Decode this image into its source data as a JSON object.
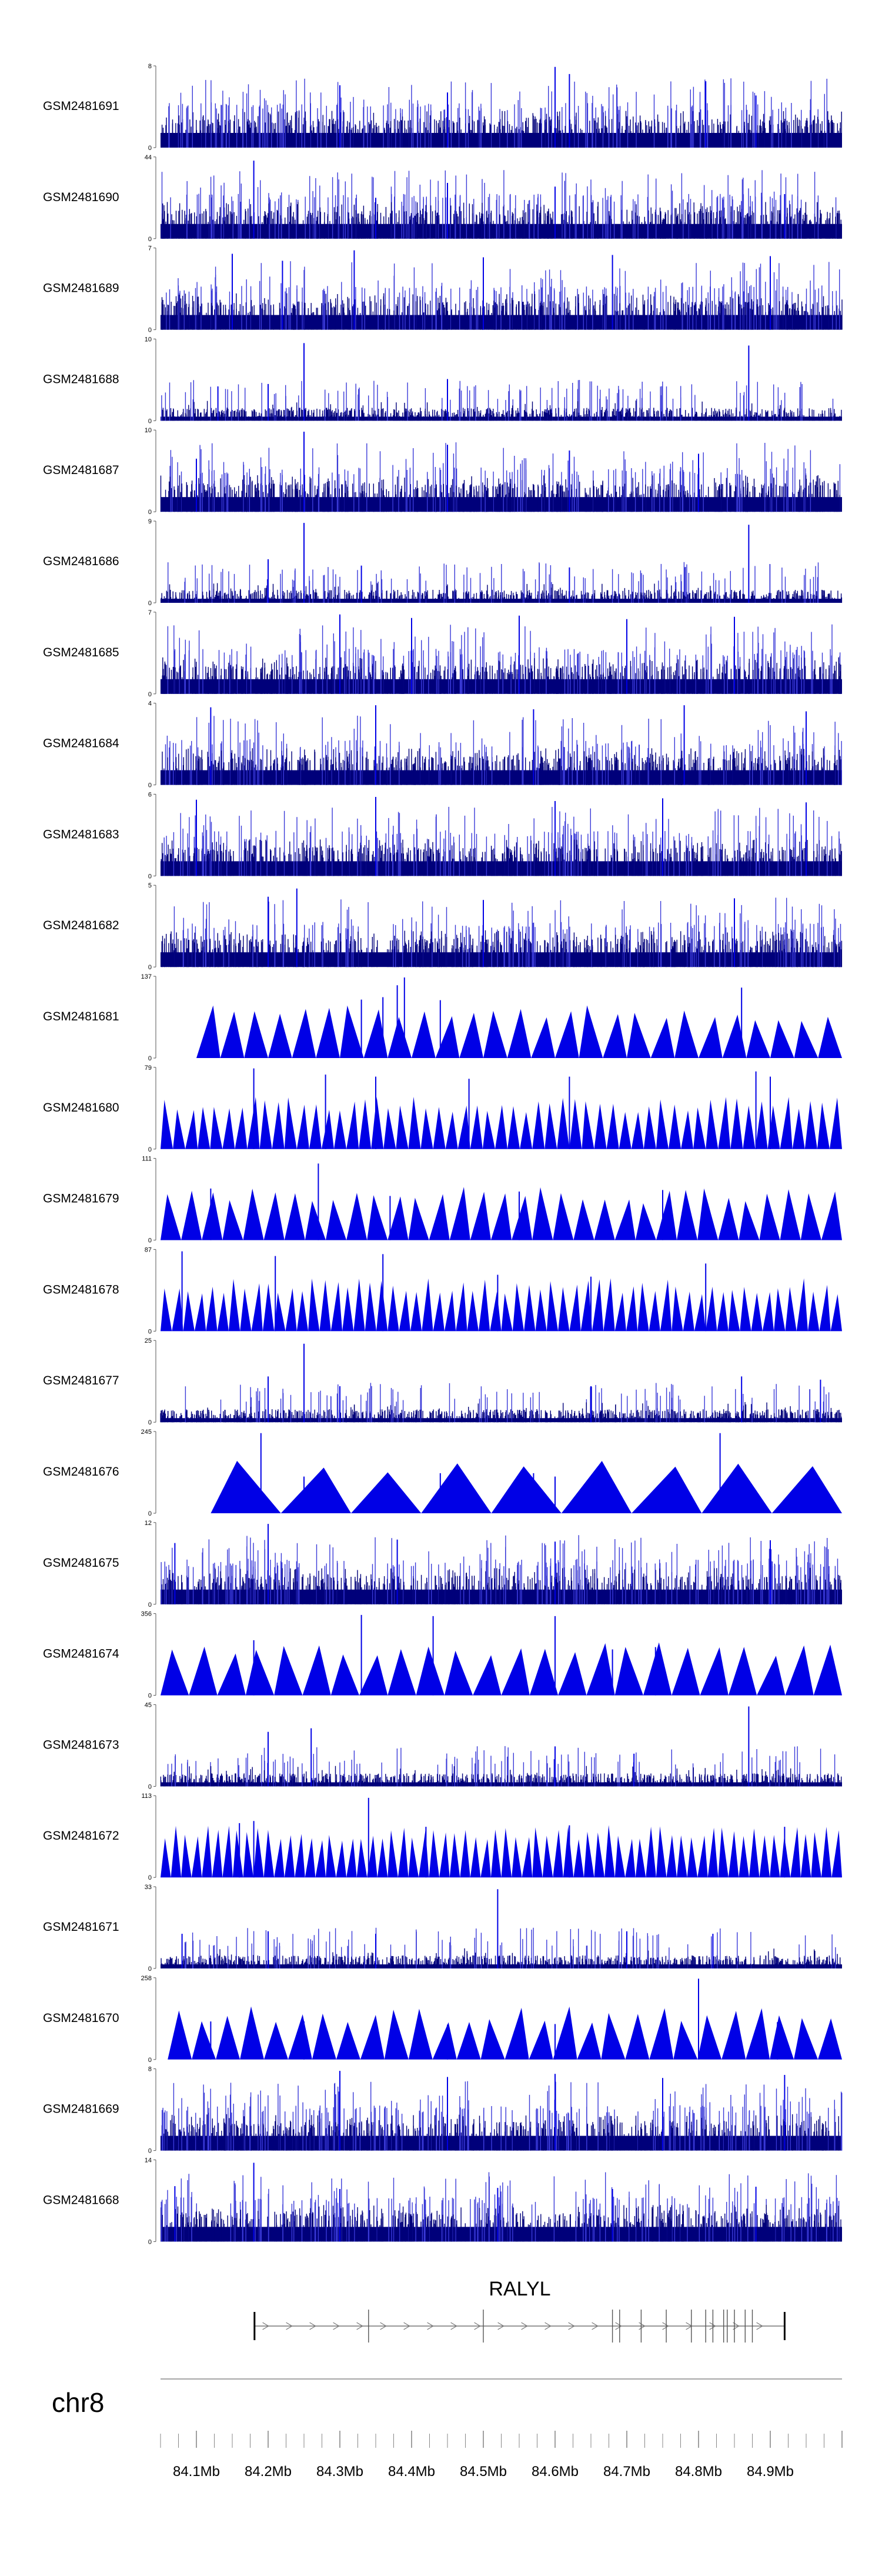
{
  "chart_data": {
    "type": "bar",
    "title": "",
    "chromosome": "chr8",
    "gene": "RALYL",
    "xlabel": "",
    "ylabel": "",
    "xlim_mb": [
      84.05,
      85.0
    ],
    "x_ticks": [
      "84.1Mb",
      "84.2Mb",
      "84.3Mb",
      "84.4Mb",
      "84.5Mb",
      "84.6Mb",
      "84.7Mb",
      "84.8Mb",
      "84.9Mb"
    ],
    "x_tick_values_mb": [
      84.1,
      84.2,
      84.3,
      84.4,
      84.5,
      84.6,
      84.7,
      84.8,
      84.9
    ],
    "gene_model": {
      "name": "RALYL",
      "start_mb": 84.18,
      "end_mb": 84.92,
      "exons_mb": [
        84.181,
        84.34,
        84.5,
        84.68,
        84.69,
        84.72,
        84.755,
        84.79,
        84.81,
        84.82,
        84.835,
        84.84,
        84.85,
        84.865,
        84.875,
        84.92
      ]
    },
    "series": [
      {
        "name": "GSM2481691",
        "ymax": 8,
        "style": "dense",
        "peaks": [
          [
            84.6,
            7.9
          ],
          [
            84.62,
            7.2
          ],
          [
            84.3,
            6.1
          ],
          [
            84.81,
            6.5
          ],
          [
            84.45,
            5.4
          ],
          [
            84.88,
            5.1
          ]
        ]
      },
      {
        "name": "GSM2481690",
        "ymax": 44,
        "style": "dense",
        "peaks": [
          [
            84.18,
            42
          ],
          [
            84.45,
            30
          ],
          [
            84.6,
            28
          ],
          [
            84.35,
            22
          ],
          [
            84.92,
            24
          ]
        ]
      },
      {
        "name": "GSM2481689",
        "ymax": 7,
        "style": "dense",
        "peaks": [
          [
            84.15,
            6.5
          ],
          [
            84.32,
            6.8
          ],
          [
            84.5,
            6.2
          ],
          [
            84.68,
            6.4
          ],
          [
            84.9,
            6.3
          ],
          [
            84.22,
            5.9
          ]
        ]
      },
      {
        "name": "GSM2481688",
        "ymax": 10,
        "style": "sparse",
        "peaks": [
          [
            84.25,
            9.5
          ],
          [
            84.87,
            9.2
          ],
          [
            84.45,
            5.1
          ],
          [
            84.2,
            4.5
          ],
          [
            84.13,
            4.2
          ]
        ]
      },
      {
        "name": "GSM2481687",
        "ymax": 10,
        "style": "dense",
        "peaks": [
          [
            84.25,
            9.8
          ],
          [
            84.45,
            8.2
          ],
          [
            84.62,
            7.5
          ],
          [
            84.8,
            7.1
          ],
          [
            84.1,
            6.5
          ]
        ]
      },
      {
        "name": "GSM2481686",
        "ymax": 9,
        "style": "sparse",
        "peaks": [
          [
            84.25,
            8.8
          ],
          [
            84.87,
            8.6
          ],
          [
            84.2,
            4.8
          ],
          [
            84.33,
            4.1
          ],
          [
            84.62,
            3.9
          ]
        ]
      },
      {
        "name": "GSM2481685",
        "ymax": 7,
        "style": "dense",
        "peaks": [
          [
            84.3,
            6.8
          ],
          [
            84.4,
            6.5
          ],
          [
            84.55,
            6.7
          ],
          [
            84.7,
            6.4
          ],
          [
            84.85,
            6.6
          ]
        ]
      },
      {
        "name": "GSM2481684",
        "ymax": 4,
        "style": "dense",
        "peaks": [
          [
            84.12,
            3.8
          ],
          [
            84.35,
            3.9
          ],
          [
            84.57,
            3.7
          ],
          [
            84.78,
            3.9
          ],
          [
            84.95,
            3.6
          ]
        ]
      },
      {
        "name": "GSM2481683",
        "ymax": 6,
        "style": "dense",
        "peaks": [
          [
            84.1,
            5.6
          ],
          [
            84.35,
            5.8
          ],
          [
            84.6,
            5.5
          ],
          [
            84.75,
            5.7
          ],
          [
            84.95,
            5.4
          ]
        ]
      },
      {
        "name": "GSM2481682",
        "ymax": 5,
        "style": "dense",
        "peaks": [
          [
            84.24,
            4.8
          ],
          [
            84.2,
            4.3
          ],
          [
            84.5,
            4.1
          ],
          [
            84.85,
            4.2
          ]
        ]
      },
      {
        "name": "GSM2481681",
        "ymax": 137,
        "style": "triangles",
        "n_peaks": 27,
        "start_mb": 84.1,
        "peaks": [
          [
            84.39,
            135
          ],
          [
            84.38,
            122
          ],
          [
            84.86,
            118
          ],
          [
            84.36,
            102
          ],
          [
            84.33,
            98
          ],
          [
            84.44,
            97
          ]
        ]
      },
      {
        "name": "GSM2481680",
        "ymax": 79,
        "style": "triangles",
        "n_peaks": 55,
        "start_mb": 84.05,
        "peaks": [
          [
            84.18,
            78
          ],
          [
            84.28,
            72
          ],
          [
            84.35,
            70
          ],
          [
            84.48,
            68
          ],
          [
            84.62,
            70
          ],
          [
            84.88,
            75
          ],
          [
            84.9,
            70
          ]
        ]
      },
      {
        "name": "GSM2481679",
        "ymax": 111,
        "style": "triangles",
        "n_peaks": 33,
        "start_mb": 84.05,
        "peaks": [
          [
            84.27,
            104
          ],
          [
            84.12,
            70
          ],
          [
            84.37,
            60
          ],
          [
            84.55,
            66
          ],
          [
            84.75,
            68
          ]
        ]
      },
      {
        "name": "GSM2481678",
        "ymax": 87,
        "style": "triangles",
        "n_peaks": 60,
        "start_mb": 84.05,
        "peaks": [
          [
            84.08,
            85
          ],
          [
            84.21,
            80
          ],
          [
            84.36,
            82
          ],
          [
            84.52,
            60
          ],
          [
            84.81,
            72
          ],
          [
            84.65,
            58
          ]
        ]
      },
      {
        "name": "GSM2481677",
        "ymax": 25,
        "style": "sparse",
        "peaks": [
          [
            84.25,
            24
          ],
          [
            84.2,
            14
          ],
          [
            84.3,
            11
          ],
          [
            84.65,
            11
          ],
          [
            84.86,
            14
          ],
          [
            84.97,
            13
          ]
        ]
      },
      {
        "name": "GSM2481676",
        "ymax": 245,
        "style": "triangles",
        "n_peaks": 9,
        "start_mb": 84.12,
        "peaks": [
          [
            84.19,
            240
          ],
          [
            84.83,
            240
          ],
          [
            84.44,
            120
          ],
          [
            84.57,
            120
          ],
          [
            84.25,
            110
          ],
          [
            84.6,
            110
          ]
        ]
      },
      {
        "name": "GSM2481675",
        "ymax": 12,
        "style": "dense",
        "peaks": [
          [
            84.2,
            11.8
          ],
          [
            84.07,
            9
          ],
          [
            84.38,
            9.5
          ],
          [
            84.6,
            9.2
          ],
          [
            84.9,
            9.4
          ]
        ]
      },
      {
        "name": "GSM2481674",
        "ymax": 356,
        "style": "triangles",
        "n_peaks": 24,
        "start_mb": 84.05,
        "peaks": [
          [
            84.33,
            350
          ],
          [
            84.43,
            345
          ],
          [
            84.6,
            345
          ],
          [
            84.68,
            200
          ],
          [
            84.74,
            210
          ],
          [
            84.18,
            240
          ]
        ]
      },
      {
        "name": "GSM2481673",
        "ymax": 45,
        "style": "sparse",
        "peaks": [
          [
            84.87,
            44
          ],
          [
            84.2,
            30
          ],
          [
            84.26,
            32
          ],
          [
            84.6,
            22
          ],
          [
            84.71,
            18
          ]
        ]
      },
      {
        "name": "GSM2481672",
        "ymax": 113,
        "style": "triangles",
        "n_peaks": 66,
        "start_mb": 84.05,
        "peaks": [
          [
            84.34,
            110
          ],
          [
            84.16,
            75
          ],
          [
            84.18,
            78
          ],
          [
            84.42,
            70
          ],
          [
            84.62,
            72
          ],
          [
            84.92,
            70
          ]
        ]
      },
      {
        "name": "GSM2481671",
        "ymax": 33,
        "style": "sparse",
        "peaks": [
          [
            84.52,
            32
          ],
          [
            84.08,
            14
          ],
          [
            84.2,
            15
          ],
          [
            84.35,
            14
          ],
          [
            84.7,
            15
          ],
          [
            84.82,
            14
          ]
        ]
      },
      {
        "name": "GSM2481670",
        "ymax": 258,
        "style": "triangles",
        "n_peaks": 28,
        "start_mb": 84.06,
        "peaks": [
          [
            84.8,
            255
          ],
          [
            84.12,
            120
          ],
          [
            84.25,
            120
          ],
          [
            84.45,
            110
          ],
          [
            84.6,
            112
          ],
          [
            84.91,
            118
          ]
        ]
      },
      {
        "name": "GSM2481669",
        "ymax": 8,
        "style": "dense",
        "peaks": [
          [
            84.3,
            7.8
          ],
          [
            84.45,
            7.2
          ],
          [
            84.6,
            7.5
          ],
          [
            84.75,
            7.1
          ],
          [
            84.92,
            7.4
          ]
        ]
      },
      {
        "name": "GSM2481668",
        "ymax": 14,
        "style": "dense",
        "peaks": [
          [
            84.18,
            13.5
          ],
          [
            84.07,
            9.5
          ],
          [
            84.3,
            9
          ],
          [
            84.52,
            9.2
          ],
          [
            84.68,
            9
          ],
          [
            84.88,
            9.4
          ]
        ]
      }
    ]
  }
}
